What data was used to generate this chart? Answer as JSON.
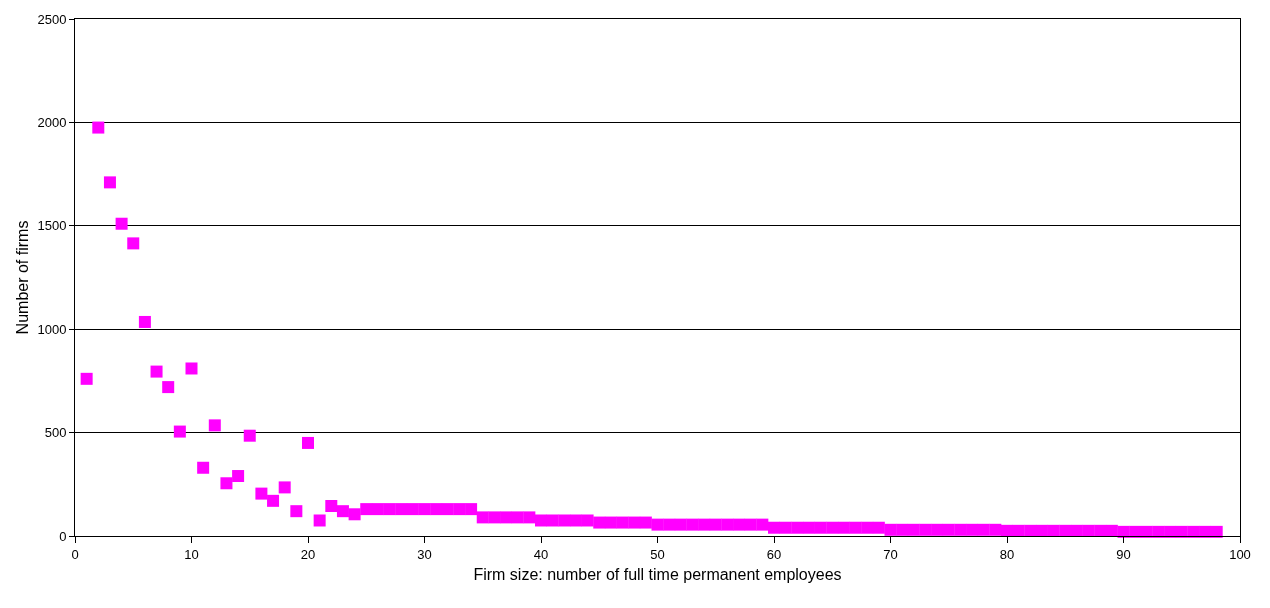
{
  "chart_data": {
    "type": "scatter",
    "xlabel": "Firm size: number of full time permanent employees",
    "ylabel": "Number of firms",
    "x": [
      1,
      2,
      3,
      4,
      5,
      6,
      7,
      8,
      9,
      10,
      11,
      12,
      13,
      14,
      15,
      16,
      17,
      18,
      19,
      20,
      21,
      22,
      23,
      24,
      25,
      26,
      27,
      28,
      29,
      30,
      31,
      32,
      33,
      34,
      35,
      36,
      37,
      38,
      39,
      40,
      41,
      42,
      43,
      44,
      45,
      46,
      47,
      48,
      49,
      50,
      51,
      52,
      53,
      54,
      55,
      56,
      57,
      58,
      59,
      60,
      61,
      62,
      63,
      64,
      65,
      66,
      67,
      68,
      69,
      70,
      71,
      72,
      73,
      74,
      75,
      76,
      77,
      78,
      79,
      80,
      81,
      82,
      83,
      84,
      85,
      86,
      87,
      88,
      89,
      90,
      91,
      92,
      93,
      94,
      95,
      96,
      97,
      98
    ],
    "series": [
      {
        "color": "#ff00ff",
        "values": [
          760,
          1975,
          1710,
          1510,
          1415,
          1035,
          795,
          720,
          505,
          810,
          330,
          535,
          255,
          290,
          485,
          205,
          170,
          235,
          120,
          450,
          75,
          145,
          120,
          105,
          130,
          130,
          130,
          130,
          130,
          130,
          130,
          130,
          130,
          130,
          90,
          90,
          90,
          90,
          90,
          75,
          75,
          75,
          75,
          75,
          65,
          65,
          65,
          65,
          65,
          55,
          55,
          55,
          55,
          55,
          55,
          55,
          55,
          55,
          55,
          40,
          40,
          40,
          40,
          40,
          40,
          40,
          40,
          40,
          40,
          30,
          30,
          30,
          30,
          30,
          30,
          30,
          30,
          30,
          30,
          25,
          25,
          25,
          25,
          25,
          25,
          25,
          25,
          25,
          25,
          20,
          20,
          20,
          20,
          20,
          20,
          20,
          20,
          20
        ]
      }
    ],
    "xlim": [
      0,
      100
    ],
    "xticks": [
      0,
      10,
      20,
      30,
      40,
      50,
      60,
      70,
      80,
      90,
      100
    ],
    "ylim": [
      0,
      2500
    ],
    "yticks": [
      0,
      500,
      1000,
      1500,
      2000,
      2500
    ],
    "grid": "y",
    "marker": "square"
  }
}
